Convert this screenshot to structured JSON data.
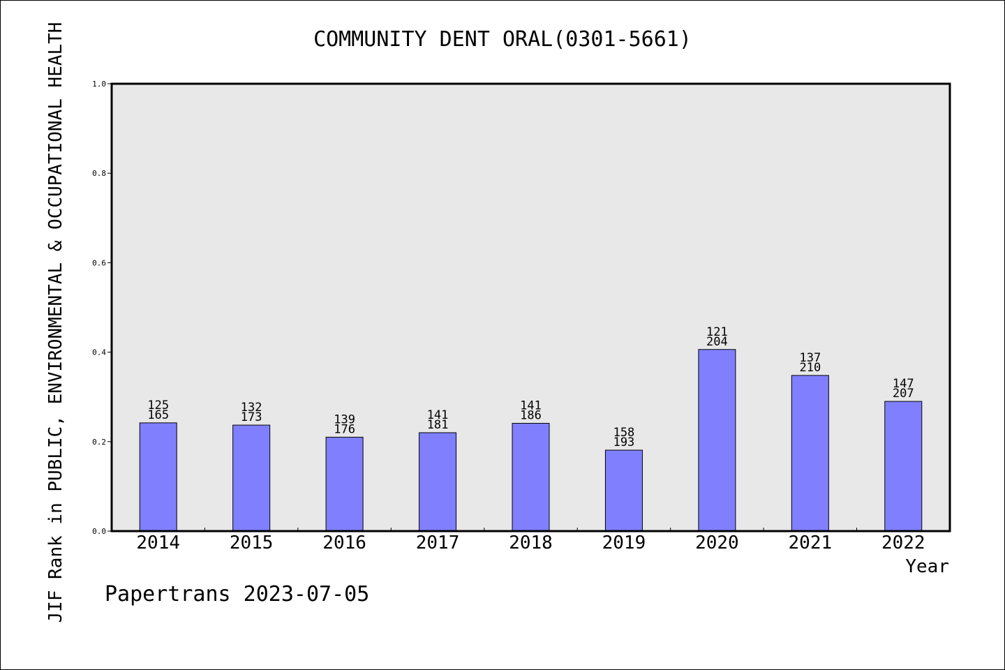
{
  "chart_data": {
    "type": "bar",
    "title": "COMMUNITY DENT ORAL(0301-5661)",
    "xlabel": "Year",
    "ylabel": "JIF Rank in PUBLIC, ENVIRONMENTAL & OCCUPATIONAL HEALTH",
    "ylim": [
      0,
      1.0
    ],
    "yticks": [
      "0.0",
      "0.2",
      "0.4",
      "0.6",
      "0.8",
      "1.0"
    ],
    "grid": false,
    "legend": "none",
    "bar_color": "#8080ff",
    "plot_background": "#e8e8e8",
    "categories": [
      "2014",
      "2015",
      "2016",
      "2017",
      "2018",
      "2019",
      "2020",
      "2021",
      "2022"
    ],
    "values": [
      0.242,
      0.237,
      0.21,
      0.22,
      0.241,
      0.181,
      0.406,
      0.348,
      0.29
    ],
    "ranks": [
      "125",
      "132",
      "139",
      "141",
      "141",
      "158",
      "121",
      "137",
      "147"
    ],
    "totals": [
      "165",
      "173",
      "176",
      "181",
      "186",
      "193",
      "204",
      "210",
      "207"
    ]
  },
  "footer": {
    "credit": "Papertrans 2023-07-05"
  }
}
